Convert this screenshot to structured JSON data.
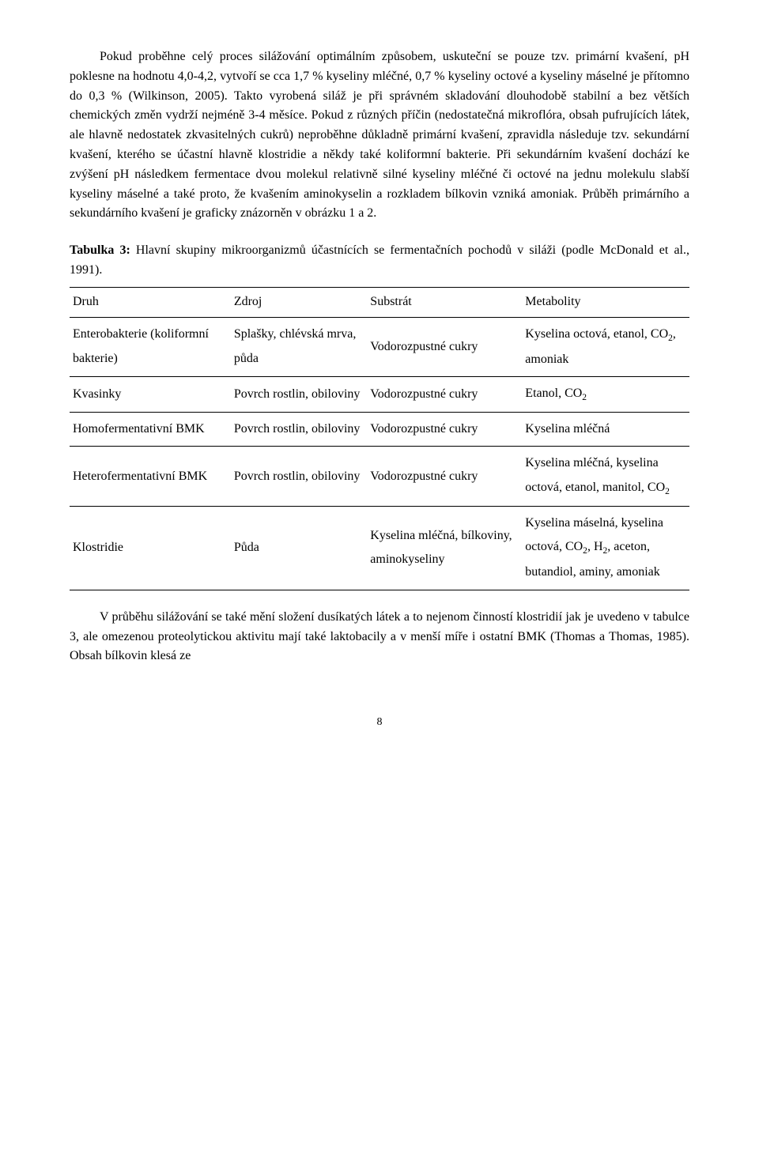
{
  "para1": "Pokud proběhne celý proces silážování optimálním způsobem, uskuteční se pouze tzv. primární kvašení, pH poklesne na hodnotu 4,0-4,2, vytvoří se cca 1,7 % kyseliny mléčné, 0,7 % kyseliny octové a kyseliny máselné je přítomno do 0,3 % (Wilkinson, 2005). Takto vyrobená siláž je při správném skladování dlouhodobě stabilní a bez větších chemických změn vydrží nejméně  3-4 měsíce. Pokud z různých příčin (nedostatečná mikroflóra, obsah pufrujících látek, ale hlavně nedostatek zkvasitelných cukrů) neproběhne důkladně primární kvašení, zpravidla následuje tzv. sekundární kvašení, kterého se účastní hlavně klostridie a někdy také koliformní bakterie. Při sekundárním kvašení dochází ke zvýšení pH následkem fermentace dvou molekul relativně silné kyseliny mléčné či octové na jednu molekulu slabší kyseliny máselné a také proto, že kvašením aminokyselin a rozkladem bílkovin vzniká amoniak. Průběh primárního a sekundárního kvašení je graficky znázorněn v obrázku 1 a 2.",
  "caption_bold": "Tabulka 3:",
  "caption_rest": "  Hlavní skupiny mikroorganizmů účastnících se fermentačních pochodů v siláži (podle McDonald et al., 1991).",
  "table": {
    "headers": [
      "Druh",
      "Zdroj",
      "Substrát",
      "Metabolity"
    ],
    "rows": [
      {
        "druh": "Enterobakterie (koliformní bakterie)",
        "zdroj": "Splašky, chlévská mrva, půda",
        "substrat": "Vodorozpustné cukry",
        "metabolit_html": "Kyselina octová, etanol, CO<span class=\"sub\">2</span>, amoniak"
      },
      {
        "druh": "Kvasinky",
        "zdroj": "Povrch rostlin, obiloviny",
        "substrat": "Vodorozpustné cukry",
        "metabolit_html": "Etanol, CO<span class=\"sub\">2</span>"
      },
      {
        "druh": "Homofermentativní BMK",
        "zdroj": "Povrch rostlin, obiloviny",
        "substrat": "Vodorozpustné cukry",
        "metabolit_html": "Kyselina mléčná"
      },
      {
        "druh": "Heterofermentativní BMK",
        "zdroj": "Povrch rostlin, obiloviny",
        "substrat": "Vodorozpustné cukry",
        "metabolit_html": "Kyselina mléčná, kyselina octová, etanol, manitol, CO<span class=\"sub\">2</span>"
      },
      {
        "druh": "Klostridie",
        "zdroj": "Půda",
        "substrat": "Kyselina mléčná, bílkoviny, aminokyseliny",
        "metabolit_html": "Kyselina máselná, kyselina octová, CO<span class=\"sub\">2</span>, H<span class=\"sub\">2</span>, aceton, butandiol, aminy, amoniak"
      }
    ]
  },
  "para2": "V průběhu silážování se také mění složení dusíkatých látek a to nejenom činností klostridií jak je uvedeno v tabulce 3, ale omezenou proteolytickou aktivitu mají také laktobacily a v menší míře i ostatní BMK (Thomas a Thomas, 1985). Obsah bílkovin klesá ze",
  "page_number": "8"
}
